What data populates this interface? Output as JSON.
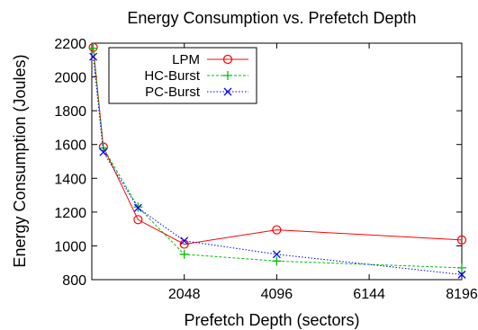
{
  "chart_data": {
    "type": "line",
    "title": "Energy Consumption vs. Prefetch Depth",
    "xlabel": "Prefetch Depth (sectors)",
    "ylabel": "Energy Consumption (Joules)",
    "xlim": [
      0,
      8196
    ],
    "ylim": [
      800,
      2200
    ],
    "xticks": [
      2048,
      4096,
      6144,
      8196
    ],
    "yticks": [
      800,
      1000,
      1200,
      1400,
      1600,
      1800,
      2000,
      2200
    ],
    "grid": false,
    "legend_position": "top-left",
    "series": [
      {
        "name": "LPM",
        "color": "#ff0000",
        "marker": "circle",
        "line_style": "solid",
        "x": [
          32,
          256,
          1024,
          2048,
          4096,
          8196
        ],
        "y": [
          2175,
          1585,
          1155,
          1010,
          1095,
          1035
        ]
      },
      {
        "name": "HC-Burst",
        "color": "#00c000",
        "marker": "plus",
        "line_style": "dashed",
        "x": [
          32,
          256,
          1024,
          2048,
          4096,
          8196
        ],
        "y": [
          2170,
          1580,
          1230,
          950,
          910,
          870
        ]
      },
      {
        "name": "PC-Burst",
        "color": "#0000ff",
        "marker": "x",
        "line_style": "dotted",
        "x": [
          32,
          256,
          1024,
          2048,
          4096,
          8196
        ],
        "y": [
          2120,
          1555,
          1225,
          1030,
          950,
          830
        ]
      }
    ]
  }
}
